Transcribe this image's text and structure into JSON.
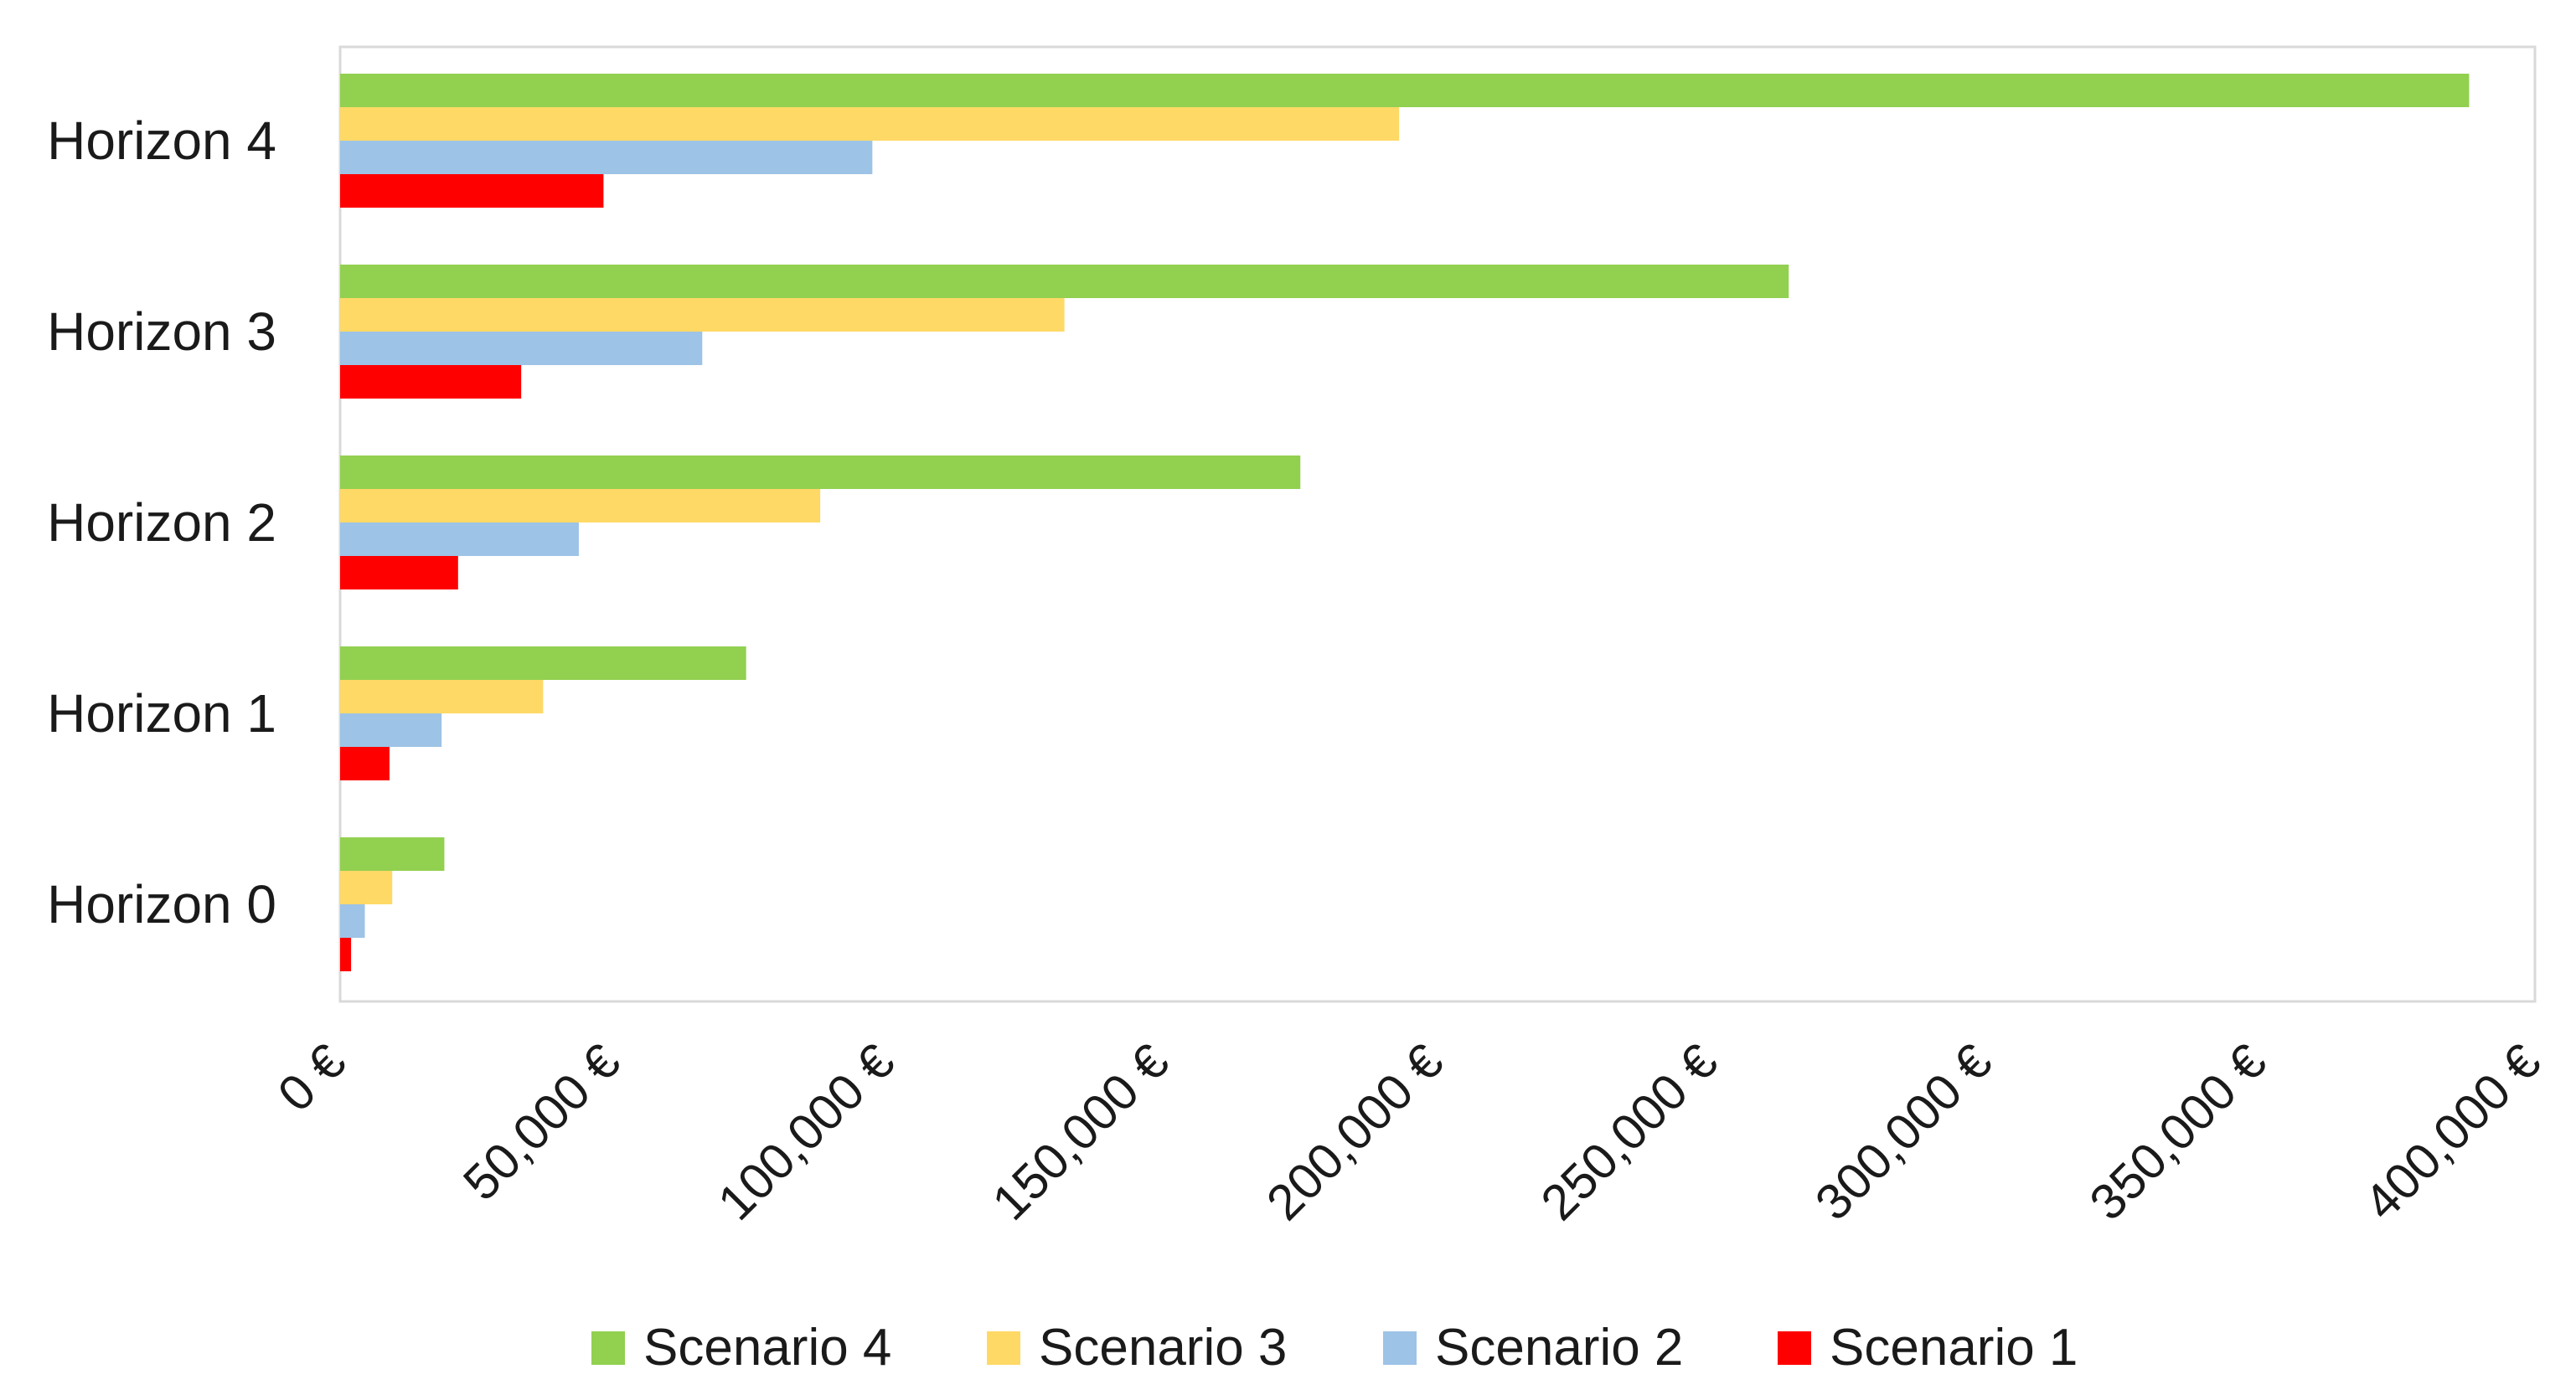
{
  "chart_data": {
    "type": "bar",
    "orientation": "horizontal",
    "title": "",
    "xlabel": "",
    "ylabel": "",
    "xlim": [
      0,
      400000
    ],
    "grid": false,
    "legend_position": "bottom",
    "categories": [
      "Horizon 4",
      "Horizon 3",
      "Horizon 2",
      "Horizon 1",
      "Horizon 0"
    ],
    "x_ticks": [
      0,
      50000,
      100000,
      150000,
      200000,
      250000,
      300000,
      350000,
      400000
    ],
    "x_tick_labels": [
      "0 €",
      "50,000 €",
      "100,000 €",
      "150,000 €",
      "200,000 €",
      "250,000 €",
      "300,000 €",
      "350,000 €",
      "400,000 €"
    ],
    "series": [
      {
        "name": "Scenario 4",
        "color": "#92d050",
        "values": [
          388000,
          264000,
          175000,
          74000,
          19000
        ]
      },
      {
        "name": "Scenario 3",
        "color": "#ffd966",
        "values": [
          193000,
          132000,
          87500,
          37000,
          9500
        ]
      },
      {
        "name": "Scenario 2",
        "color": "#9dc3e6",
        "values": [
          97000,
          66000,
          43500,
          18500,
          4500
        ]
      },
      {
        "name": "Scenario 1",
        "color": "#ff0000",
        "values": [
          48000,
          33000,
          21500,
          9000,
          2000
        ]
      }
    ],
    "legend_order": [
      "Scenario 4",
      "Scenario 3",
      "Scenario 2",
      "Scenario 1"
    ]
  }
}
